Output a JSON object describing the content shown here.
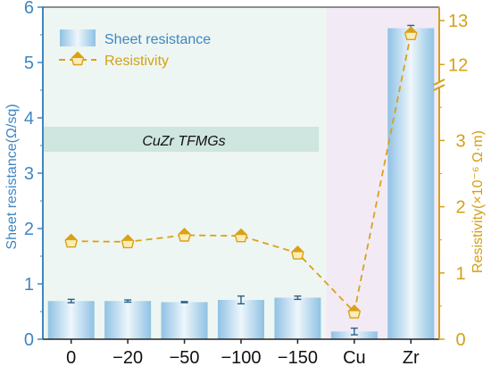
{
  "chart_data": {
    "type": "bar",
    "categories": [
      "0",
      "−20",
      "−50",
      "−100",
      "−150",
      "Cu",
      "Zr"
    ],
    "series": [
      {
        "name": "Sheet resistance",
        "type": "bar",
        "axis": "left",
        "values": [
          0.69,
          0.69,
          0.67,
          0.71,
          0.75,
          0.14,
          5.62
        ],
        "errors": [
          0.03,
          0.02,
          0.01,
          0.07,
          0.03,
          0.06,
          0.05
        ]
      },
      {
        "name": "Resistivity",
        "type": "line",
        "axis": "right",
        "values": [
          1.48,
          1.47,
          1.57,
          1.56,
          1.3,
          0.41,
          12.7
        ]
      }
    ],
    "ylabel_left": "Sheet resistance(Ω/sq)",
    "ylabel_right": "Resistivity(×10⁻⁶ Ω·m)",
    "ylim_left": [
      0,
      6
    ],
    "yticks_left": [
      "0",
      "1",
      "2",
      "3",
      "4",
      "5",
      "6"
    ],
    "ylim_right_lower": [
      0,
      3.8
    ],
    "yticks_right_lower": [
      "0",
      "1",
      "2",
      "3"
    ],
    "ylim_right_upper": [
      11.6,
      13
    ],
    "yticks_right_upper": [
      "12",
      "13"
    ],
    "annotation": "CuZr TFMGs",
    "legend_position": "top-left",
    "colors": {
      "axis_left": "#3f86c2",
      "axis_right": "#d4a017",
      "bar_center": "#e9f3fa",
      "bar_edge": "#8fc2e4",
      "line": "#dba116",
      "marker_fill": "#fbedb6",
      "region_tfmg": "#edf6f2",
      "region_tfmg_label": "#cfe5df",
      "region_ref": "#f2ebf6",
      "error_bar": "#2b5f8c"
    }
  }
}
